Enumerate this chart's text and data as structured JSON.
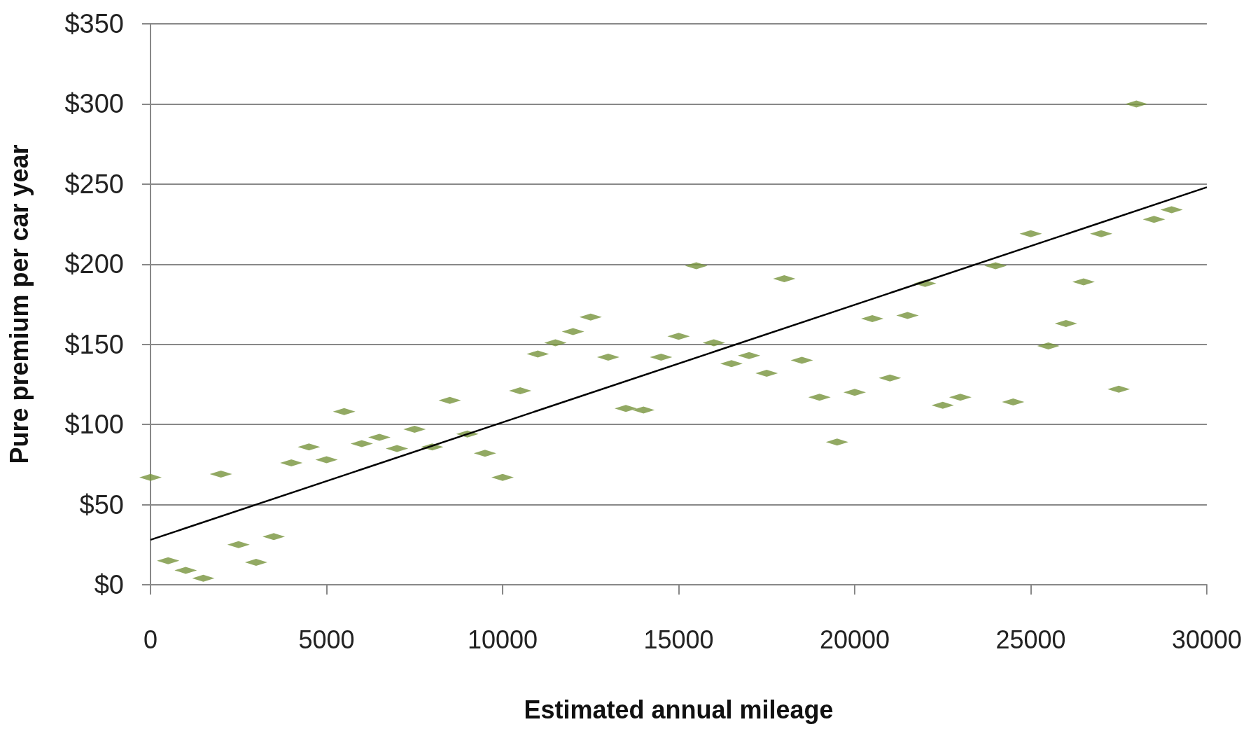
{
  "chart_data": {
    "type": "scatter",
    "xlabel": "Estimated annual mileage",
    "ylabel": "Pure premium per car year",
    "xlim": [
      0,
      30000
    ],
    "xticks": [
      0,
      5000,
      10000,
      15000,
      20000,
      25000,
      30000
    ],
    "ylim": [
      0,
      350
    ],
    "yticks": [
      {
        "value": 0,
        "label": "$0"
      },
      {
        "value": 50,
        "label": "$50"
      },
      {
        "value": 100,
        "label": "$100"
      },
      {
        "value": 150,
        "label": "$150"
      },
      {
        "value": 200,
        "label": "$200"
      },
      {
        "value": 250,
        "label": "$250"
      },
      {
        "value": 300,
        "label": "$300"
      },
      {
        "value": 350,
        "label": "$350"
      }
    ],
    "grid": "y",
    "series": [
      {
        "type": "scatter",
        "color": "#77933c",
        "x": [
          0,
          500,
          1000,
          1500,
          2000,
          2500,
          3000,
          3500,
          4000,
          4500,
          5000,
          5500,
          6000,
          6500,
          7000,
          7500,
          8000,
          8500,
          9000,
          9500,
          10000,
          10500,
          11000,
          11500,
          12000,
          12500,
          13000,
          13500,
          14000,
          14500,
          15000,
          15500,
          16000,
          16500,
          17000,
          17500,
          18000,
          18500,
          19000,
          19500,
          20000,
          20500,
          21000,
          21500,
          22000,
          22500,
          23000,
          24000,
          24500,
          25000,
          25500,
          26000,
          26500,
          27000,
          27500,
          28000,
          28500,
          29000
        ],
        "values": [
          67,
          15,
          9,
          4,
          69,
          25,
          14,
          30,
          76,
          86,
          78,
          108,
          88,
          92,
          85,
          97,
          86,
          115,
          94,
          82,
          67,
          121,
          144,
          151,
          158,
          167,
          142,
          110,
          109,
          142,
          155,
          199,
          151,
          138,
          143,
          132,
          191,
          140,
          117,
          89,
          120,
          166,
          129,
          168,
          188,
          112,
          117,
          199,
          114,
          219,
          149,
          163,
          189,
          219,
          122,
          300,
          228,
          234
        ]
      },
      {
        "type": "line",
        "color": "#000000",
        "x": [
          0,
          30000
        ],
        "values": [
          28,
          248
        ]
      }
    ]
  }
}
